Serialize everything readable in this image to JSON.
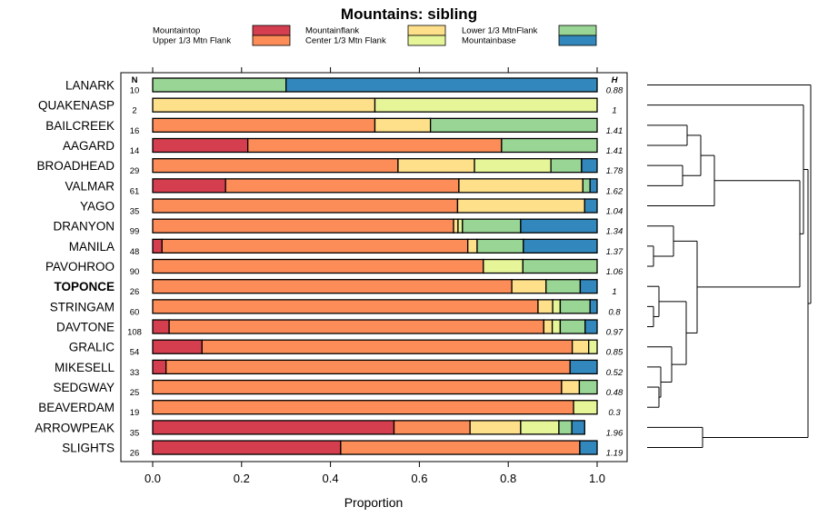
{
  "chart_data": {
    "type": "bar",
    "orientation": "horizontal",
    "stacked": true,
    "title": "Mountains: sibling",
    "xlabel": "Proportion",
    "ylabel": "",
    "xlim": [
      0,
      1
    ],
    "x_ticks": [
      "0.0",
      "0.2",
      "0.4",
      "0.6",
      "0.8",
      "1.0"
    ],
    "n_header": "N",
    "h_header": "H",
    "legend": [
      {
        "name": "Mountaintop",
        "color": "#D53E4F"
      },
      {
        "name": "Upper 1/3 Mtn Flank",
        "color": "#FC8D59"
      },
      {
        "name": "Mountainflank",
        "color": "#FEE08B"
      },
      {
        "name": "Center 1/3 Mtn Flank",
        "color": "#E6F598"
      },
      {
        "name": "Lower 1/3 MtnFlank",
        "color": "#99D594"
      },
      {
        "name": "Mountainbase",
        "color": "#3288BD"
      }
    ],
    "highlight": "TOPONCE",
    "rows": [
      {
        "name": "LANARK",
        "n": "10",
        "h": "0.88",
        "values": [
          0,
          0,
          0,
          0,
          0.3,
          0.7
        ]
      },
      {
        "name": "QUAKENASP",
        "n": "2",
        "h": "1",
        "values": [
          0,
          0,
          0.5,
          0.5,
          0,
          0
        ]
      },
      {
        "name": "BAILCREEK",
        "n": "16",
        "h": "1.41",
        "values": [
          0,
          0.5,
          0.125,
          0,
          0.375,
          0
        ]
      },
      {
        "name": "AAGARD",
        "n": "14",
        "h": "1.41",
        "values": [
          0.214,
          0.571,
          0,
          0,
          0.215,
          0
        ]
      },
      {
        "name": "BROADHEAD",
        "n": "29",
        "h": "1.78",
        "values": [
          0,
          0.552,
          0.172,
          0.172,
          0.069,
          0.035
        ]
      },
      {
        "name": "VALMAR",
        "n": "61",
        "h": "1.62",
        "values": [
          0.164,
          0.525,
          0.279,
          0,
          0.016,
          0.016
        ]
      },
      {
        "name": "YAGO",
        "n": "35",
        "h": "1.04",
        "values": [
          0,
          0.686,
          0.286,
          0,
          0,
          0.028
        ]
      },
      {
        "name": "DRANYON",
        "n": "99",
        "h": "1.34",
        "values": [
          0,
          0.677,
          0.01,
          0.01,
          0.131,
          0.172
        ]
      },
      {
        "name": "MANILA",
        "n": "48",
        "h": "1.37",
        "values": [
          0.021,
          0.688,
          0.021,
          0,
          0.104,
          0.166
        ]
      },
      {
        "name": "PAVOHROO",
        "n": "90",
        "h": "1.06",
        "values": [
          0,
          0.744,
          0,
          0.089,
          0.167,
          0
        ]
      },
      {
        "name": "TOPONCE",
        "n": "26",
        "h": "1",
        "values": [
          0,
          0.808,
          0.077,
          0,
          0.077,
          0.038
        ]
      },
      {
        "name": "STRINGAM",
        "n": "60",
        "h": "0.8",
        "values": [
          0,
          0.867,
          0.033,
          0.017,
          0.067,
          0.016
        ]
      },
      {
        "name": "DAVTONE",
        "n": "108",
        "h": "0.97",
        "values": [
          0.037,
          0.843,
          0.019,
          0.018,
          0.056,
          0.027
        ]
      },
      {
        "name": "GRALIC",
        "n": "54",
        "h": "0.85",
        "values": [
          0.111,
          0.833,
          0.037,
          0.019,
          0,
          0
        ]
      },
      {
        "name": "MIKESELL",
        "n": "33",
        "h": "0.52",
        "values": [
          0.03,
          0.909,
          0,
          0,
          0,
          0.061
        ]
      },
      {
        "name": "SEDGWAY",
        "n": "25",
        "h": "0.48",
        "values": [
          0,
          0.92,
          0.04,
          0,
          0.04,
          0
        ]
      },
      {
        "name": "BEAVERDAM",
        "n": "19",
        "h": "0.3",
        "values": [
          0,
          0.947,
          0,
          0.053,
          0,
          0
        ]
      },
      {
        "name": "ARROWPEAK",
        "n": "35",
        "h": "1.96",
        "values": [
          0.543,
          0.171,
          0.114,
          0.086,
          0.029,
          0.029
        ]
      },
      {
        "name": "SLIGHTS",
        "n": "26",
        "h": "1.19",
        "values": [
          0.423,
          0.538,
          0,
          0,
          0,
          0.039
        ]
      }
    ]
  }
}
